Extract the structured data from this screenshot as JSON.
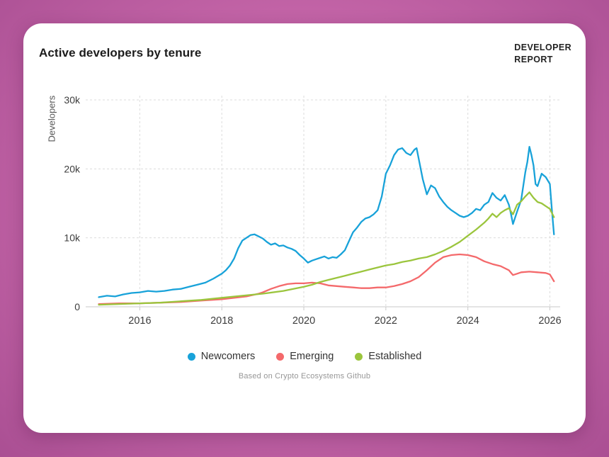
{
  "logo": {
    "line1": "DEVELOPER",
    "line2": "REPORT"
  },
  "caption": {
    "text": "Based on Crypto Ecosystems Github"
  },
  "chart_data": {
    "type": "line",
    "title": "Active developers by tenure",
    "xlabel": "",
    "ylabel": "Developers",
    "values_unit": "thousands",
    "xlim": [
      2014.75,
      2026.25
    ],
    "ylim": [
      0,
      30
    ],
    "xticks": [
      2016,
      2018,
      2020,
      2022,
      2024,
      2026
    ],
    "xtick_labels": [
      "2016",
      "2018",
      "2020",
      "2022",
      "2024",
      "2026"
    ],
    "yticks": [
      0,
      10,
      20,
      30
    ],
    "ytick_labels": [
      "0",
      "10k",
      "20k",
      "30k"
    ],
    "grid": "dashed",
    "legend_position": "bottom-center",
    "series": [
      {
        "name": "Newcomers",
        "color": "#18A2D9",
        "points": [
          [
            2015.0,
            1.4
          ],
          [
            2015.2,
            1.6
          ],
          [
            2015.4,
            1.5
          ],
          [
            2015.6,
            1.8
          ],
          [
            2015.8,
            2.0
          ],
          [
            2016.0,
            2.1
          ],
          [
            2016.2,
            2.3
          ],
          [
            2016.4,
            2.2
          ],
          [
            2016.6,
            2.3
          ],
          [
            2016.8,
            2.5
          ],
          [
            2017.0,
            2.6
          ],
          [
            2017.2,
            2.9
          ],
          [
            2017.4,
            3.2
          ],
          [
            2017.6,
            3.5
          ],
          [
            2017.8,
            4.1
          ],
          [
            2018.0,
            4.8
          ],
          [
            2018.1,
            5.3
          ],
          [
            2018.2,
            6.0
          ],
          [
            2018.3,
            7.0
          ],
          [
            2018.4,
            8.5
          ],
          [
            2018.5,
            9.6
          ],
          [
            2018.6,
            10.0
          ],
          [
            2018.7,
            10.4
          ],
          [
            2018.8,
            10.5
          ],
          [
            2018.9,
            10.2
          ],
          [
            2019.0,
            9.9
          ],
          [
            2019.1,
            9.4
          ],
          [
            2019.2,
            9.0
          ],
          [
            2019.3,
            9.2
          ],
          [
            2019.4,
            8.8
          ],
          [
            2019.5,
            8.9
          ],
          [
            2019.6,
            8.6
          ],
          [
            2019.7,
            8.4
          ],
          [
            2019.8,
            8.1
          ],
          [
            2019.9,
            7.5
          ],
          [
            2020.0,
            7.0
          ],
          [
            2020.1,
            6.4
          ],
          [
            2020.2,
            6.7
          ],
          [
            2020.3,
            6.9
          ],
          [
            2020.4,
            7.1
          ],
          [
            2020.5,
            7.3
          ],
          [
            2020.6,
            7.0
          ],
          [
            2020.7,
            7.2
          ],
          [
            2020.8,
            7.1
          ],
          [
            2020.9,
            7.6
          ],
          [
            2021.0,
            8.2
          ],
          [
            2021.1,
            9.5
          ],
          [
            2021.2,
            10.8
          ],
          [
            2021.3,
            11.5
          ],
          [
            2021.4,
            12.3
          ],
          [
            2021.5,
            12.8
          ],
          [
            2021.6,
            13.0
          ],
          [
            2021.7,
            13.4
          ],
          [
            2021.8,
            14.0
          ],
          [
            2021.9,
            16.0
          ],
          [
            2022.0,
            19.3
          ],
          [
            2022.1,
            20.5
          ],
          [
            2022.2,
            22.0
          ],
          [
            2022.3,
            22.8
          ],
          [
            2022.4,
            23.0
          ],
          [
            2022.5,
            22.3
          ],
          [
            2022.6,
            22.0
          ],
          [
            2022.7,
            22.8
          ],
          [
            2022.75,
            23.0
          ],
          [
            2022.8,
            21.5
          ],
          [
            2022.9,
            18.5
          ],
          [
            2023.0,
            16.3
          ],
          [
            2023.1,
            17.6
          ],
          [
            2023.2,
            17.2
          ],
          [
            2023.3,
            16.0
          ],
          [
            2023.4,
            15.2
          ],
          [
            2023.5,
            14.5
          ],
          [
            2023.6,
            14.0
          ],
          [
            2023.7,
            13.6
          ],
          [
            2023.8,
            13.2
          ],
          [
            2023.9,
            13.0
          ],
          [
            2024.0,
            13.2
          ],
          [
            2024.1,
            13.6
          ],
          [
            2024.2,
            14.2
          ],
          [
            2024.3,
            14.0
          ],
          [
            2024.4,
            14.8
          ],
          [
            2024.5,
            15.2
          ],
          [
            2024.6,
            16.5
          ],
          [
            2024.7,
            15.8
          ],
          [
            2024.8,
            15.4
          ],
          [
            2024.9,
            16.2
          ],
          [
            2025.0,
            14.8
          ],
          [
            2025.05,
            13.5
          ],
          [
            2025.1,
            12.0
          ],
          [
            2025.2,
            13.8
          ],
          [
            2025.3,
            15.5
          ],
          [
            2025.4,
            19.5
          ],
          [
            2025.45,
            21.0
          ],
          [
            2025.5,
            23.2
          ],
          [
            2025.55,
            22.0
          ],
          [
            2025.6,
            20.5
          ],
          [
            2025.65,
            17.8
          ],
          [
            2025.7,
            17.5
          ],
          [
            2025.8,
            19.3
          ],
          [
            2025.9,
            18.8
          ],
          [
            2026.0,
            17.8
          ],
          [
            2026.05,
            14.0
          ],
          [
            2026.1,
            10.5
          ]
        ]
      },
      {
        "name": "Emerging",
        "color": "#F4696B",
        "points": [
          [
            2015.0,
            0.4
          ],
          [
            2015.5,
            0.5
          ],
          [
            2016.0,
            0.5
          ],
          [
            2016.5,
            0.6
          ],
          [
            2017.0,
            0.7
          ],
          [
            2017.5,
            0.9
          ],
          [
            2018.0,
            1.1
          ],
          [
            2018.3,
            1.3
          ],
          [
            2018.6,
            1.5
          ],
          [
            2018.9,
            1.9
          ],
          [
            2019.0,
            2.1
          ],
          [
            2019.2,
            2.6
          ],
          [
            2019.4,
            3.0
          ],
          [
            2019.6,
            3.3
          ],
          [
            2019.8,
            3.4
          ],
          [
            2020.0,
            3.4
          ],
          [
            2020.2,
            3.5
          ],
          [
            2020.4,
            3.4
          ],
          [
            2020.6,
            3.1
          ],
          [
            2020.8,
            3.0
          ],
          [
            2021.0,
            2.9
          ],
          [
            2021.2,
            2.8
          ],
          [
            2021.4,
            2.7
          ],
          [
            2021.6,
            2.7
          ],
          [
            2021.8,
            2.8
          ],
          [
            2022.0,
            2.8
          ],
          [
            2022.2,
            3.0
          ],
          [
            2022.4,
            3.3
          ],
          [
            2022.6,
            3.7
          ],
          [
            2022.8,
            4.3
          ],
          [
            2023.0,
            5.3
          ],
          [
            2023.2,
            6.4
          ],
          [
            2023.4,
            7.2
          ],
          [
            2023.6,
            7.5
          ],
          [
            2023.8,
            7.6
          ],
          [
            2024.0,
            7.5
          ],
          [
            2024.2,
            7.2
          ],
          [
            2024.4,
            6.6
          ],
          [
            2024.6,
            6.2
          ],
          [
            2024.8,
            5.9
          ],
          [
            2025.0,
            5.3
          ],
          [
            2025.1,
            4.6
          ],
          [
            2025.2,
            4.8
          ],
          [
            2025.3,
            5.0
          ],
          [
            2025.5,
            5.1
          ],
          [
            2025.7,
            5.0
          ],
          [
            2025.9,
            4.9
          ],
          [
            2026.0,
            4.7
          ],
          [
            2026.1,
            3.7
          ]
        ]
      },
      {
        "name": "Established",
        "color": "#9BC53D",
        "points": [
          [
            2015.0,
            0.3
          ],
          [
            2015.5,
            0.4
          ],
          [
            2016.0,
            0.5
          ],
          [
            2016.5,
            0.6
          ],
          [
            2017.0,
            0.8
          ],
          [
            2017.5,
            1.0
          ],
          [
            2018.0,
            1.3
          ],
          [
            2018.5,
            1.6
          ],
          [
            2019.0,
            1.9
          ],
          [
            2019.5,
            2.3
          ],
          [
            2020.0,
            2.9
          ],
          [
            2020.2,
            3.2
          ],
          [
            2020.4,
            3.6
          ],
          [
            2020.6,
            3.9
          ],
          [
            2020.8,
            4.2
          ],
          [
            2021.0,
            4.5
          ],
          [
            2021.2,
            4.8
          ],
          [
            2021.4,
            5.1
          ],
          [
            2021.6,
            5.4
          ],
          [
            2021.8,
            5.7
          ],
          [
            2022.0,
            6.0
          ],
          [
            2022.2,
            6.2
          ],
          [
            2022.4,
            6.5
          ],
          [
            2022.6,
            6.7
          ],
          [
            2022.8,
            7.0
          ],
          [
            2023.0,
            7.2
          ],
          [
            2023.2,
            7.6
          ],
          [
            2023.4,
            8.1
          ],
          [
            2023.6,
            8.7
          ],
          [
            2023.8,
            9.4
          ],
          [
            2024.0,
            10.3
          ],
          [
            2024.2,
            11.2
          ],
          [
            2024.4,
            12.2
          ],
          [
            2024.5,
            12.8
          ],
          [
            2024.6,
            13.5
          ],
          [
            2024.7,
            13.0
          ],
          [
            2024.8,
            13.6
          ],
          [
            2024.9,
            14.0
          ],
          [
            2025.0,
            14.3
          ],
          [
            2025.1,
            13.4
          ],
          [
            2025.2,
            14.8
          ],
          [
            2025.3,
            15.3
          ],
          [
            2025.4,
            16.0
          ],
          [
            2025.5,
            16.6
          ],
          [
            2025.6,
            15.8
          ],
          [
            2025.7,
            15.2
          ],
          [
            2025.8,
            15.0
          ],
          [
            2025.9,
            14.6
          ],
          [
            2026.0,
            14.2
          ],
          [
            2026.1,
            13.0
          ]
        ]
      }
    ]
  }
}
